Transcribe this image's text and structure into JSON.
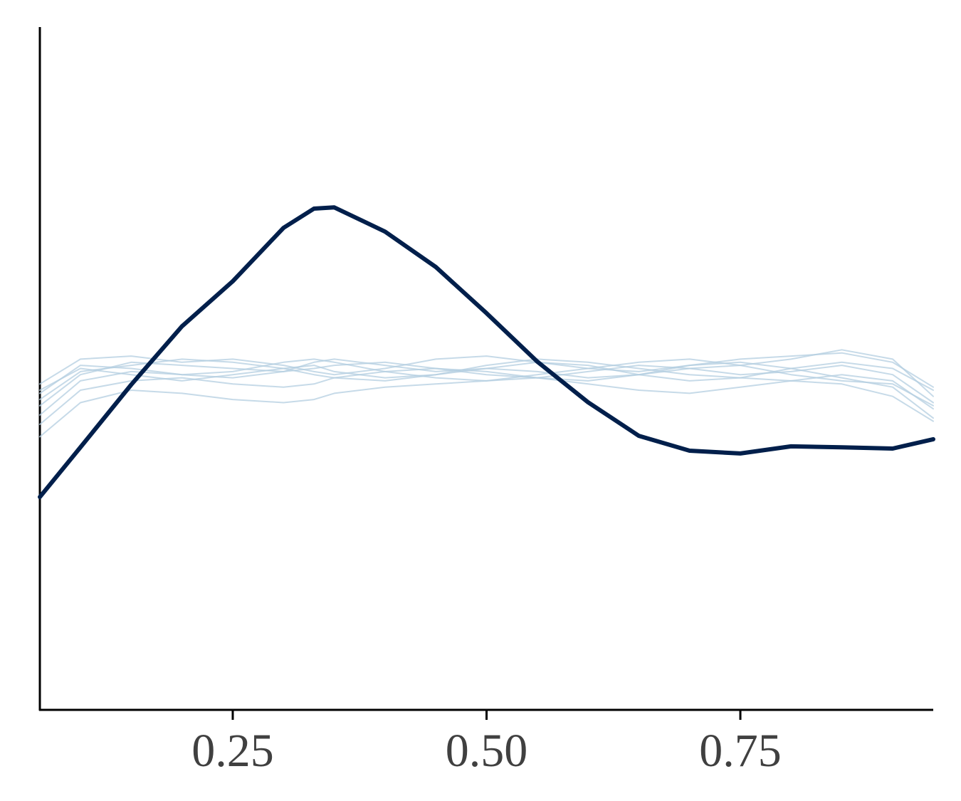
{
  "chart_data": {
    "type": "line",
    "x": [
      0.06,
      0.1,
      0.15,
      0.2,
      0.25,
      0.3,
      0.33,
      0.35,
      0.4,
      0.45,
      0.5,
      0.55,
      0.6,
      0.65,
      0.7,
      0.75,
      0.8,
      0.85,
      0.9,
      0.94
    ],
    "xlim": [
      0.06,
      0.94
    ],
    "xticks": [
      0.25,
      {
        "value": 0.5,
        "label": "0.50"
      },
      0.75
    ],
    "ylim": [
      0,
      2.2
    ],
    "series": [
      {
        "color": "#b3cde0",
        "values": [
          0.98,
          1.08,
          1.12,
          1.11,
          1.1,
          1.09,
          1.1,
          1.11,
          1.12,
          1.1,
          1.08,
          1.07,
          1.09,
          1.11,
          1.1,
          1.08,
          1.09,
          1.11,
          1.08,
          0.99
        ]
      },
      {
        "color": "#b3cde0",
        "values": [
          1.02,
          1.11,
          1.1,
          1.08,
          1.07,
          1.09,
          1.12,
          1.13,
          1.11,
          1.09,
          1.1,
          1.12,
          1.11,
          1.08,
          1.06,
          1.07,
          1.1,
          1.12,
          1.1,
          1.03
        ]
      },
      {
        "color": "#b3cde0",
        "values": [
          0.92,
          1.03,
          1.06,
          1.07,
          1.05,
          1.04,
          1.05,
          1.07,
          1.09,
          1.1,
          1.09,
          1.07,
          1.06,
          1.08,
          1.11,
          1.12,
          1.1,
          1.07,
          1.04,
          0.94
        ]
      },
      {
        "color": "#b3cde0",
        "values": [
          1.05,
          1.13,
          1.14,
          1.12,
          1.13,
          1.11,
          1.09,
          1.08,
          1.1,
          1.13,
          1.14,
          1.12,
          1.1,
          1.09,
          1.11,
          1.13,
          1.14,
          1.15,
          1.12,
          1.04
        ]
      },
      {
        "color": "#b3cde0",
        "values": [
          0.88,
          0.99,
          1.03,
          1.02,
          1.0,
          0.99,
          1.0,
          1.02,
          1.04,
          1.05,
          1.06,
          1.07,
          1.05,
          1.03,
          1.02,
          1.04,
          1.06,
          1.05,
          1.01,
          0.93
        ]
      },
      {
        "color": "#b3cde0",
        "values": [
          1.0,
          1.09,
          1.11,
          1.13,
          1.12,
          1.1,
          1.08,
          1.07,
          1.06,
          1.08,
          1.11,
          1.13,
          1.12,
          1.1,
          1.08,
          1.07,
          1.06,
          1.08,
          1.06,
          0.97
        ]
      },
      {
        "color": "#b3cde0",
        "values": [
          0.95,
          1.06,
          1.09,
          1.08,
          1.09,
          1.12,
          1.13,
          1.12,
          1.09,
          1.07,
          1.06,
          1.08,
          1.1,
          1.12,
          1.13,
          1.11,
          1.08,
          1.06,
          1.05,
          0.98
        ]
      },
      {
        "color": "#b3cde0",
        "values": [
          1.03,
          1.1,
          1.08,
          1.06,
          1.08,
          1.1,
          1.11,
          1.09,
          1.07,
          1.08,
          1.1,
          1.09,
          1.07,
          1.08,
          1.1,
          1.11,
          1.13,
          1.16,
          1.13,
          1.01
        ]
      },
      {
        "color": "#011f4b",
        "values": [
          0.686,
          0.846,
          1.048,
          1.236,
          1.381,
          1.553,
          1.615,
          1.619,
          1.541,
          1.427,
          1.278,
          1.122,
          0.991,
          0.883,
          0.835,
          0.826,
          0.849,
          0.846,
          0.842,
          0.872
        ]
      }
    ]
  }
}
